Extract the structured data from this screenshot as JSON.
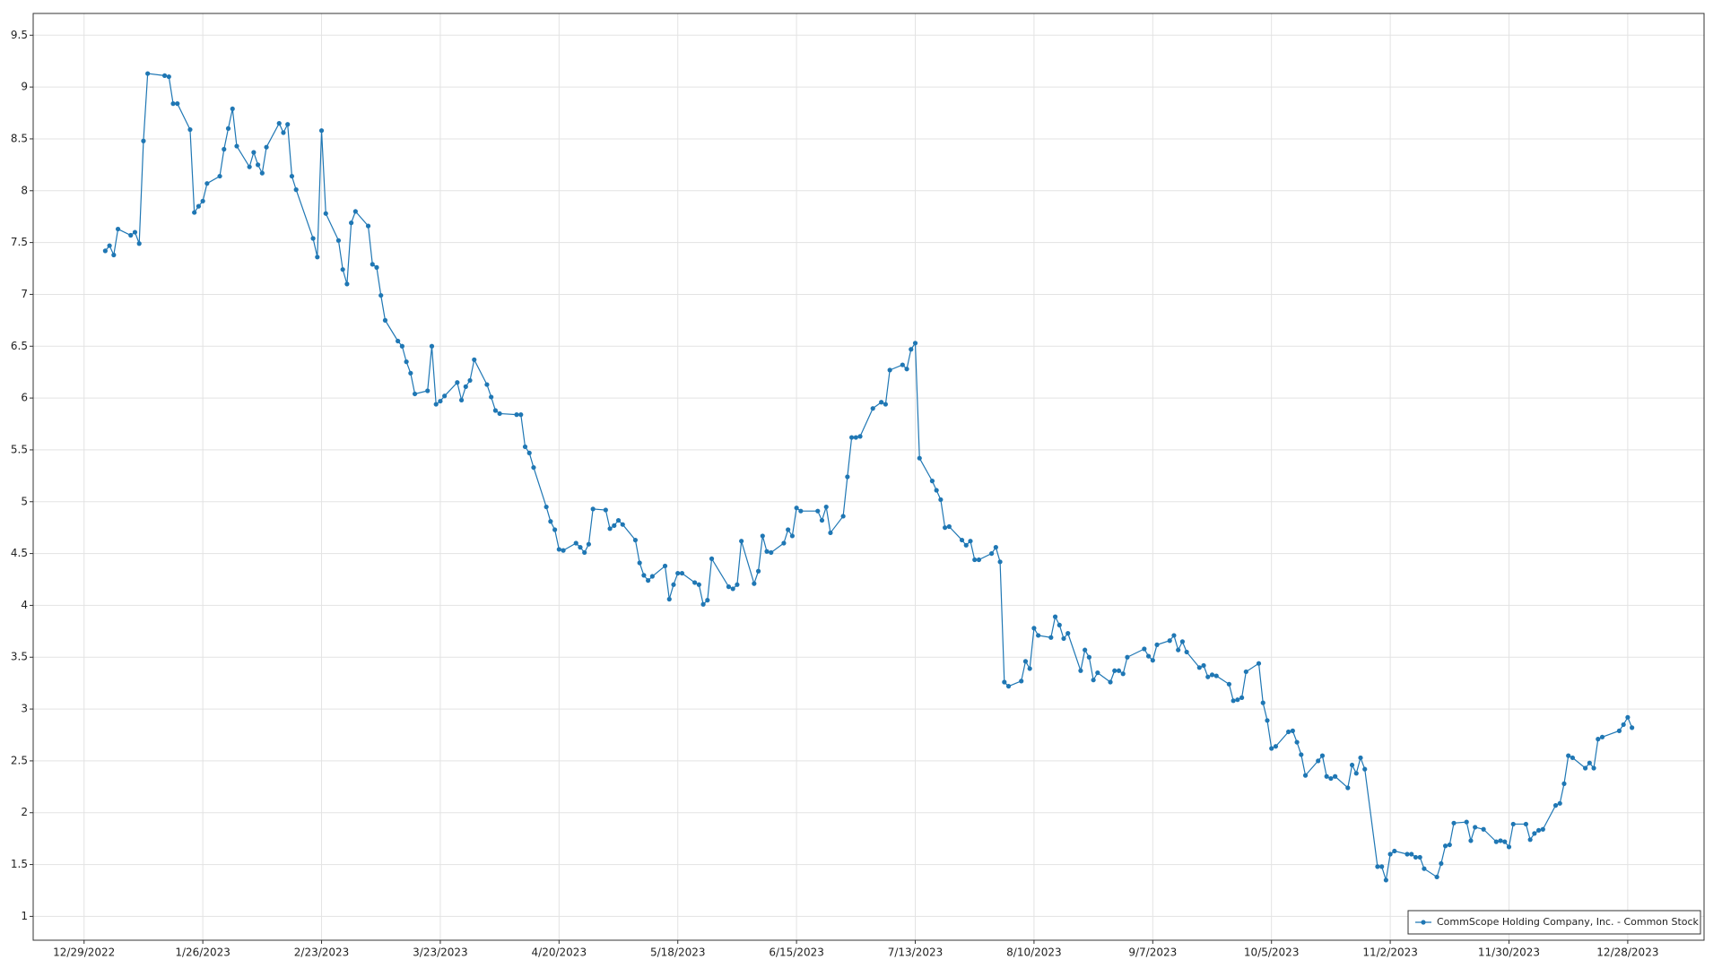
{
  "chart_data": {
    "type": "line",
    "x": [
      "2023-01-03",
      "2023-01-04",
      "2023-01-05",
      "2023-01-06",
      "2023-01-09",
      "2023-01-10",
      "2023-01-11",
      "2023-01-12",
      "2023-01-13",
      "2023-01-17",
      "2023-01-18",
      "2023-01-19",
      "2023-01-20",
      "2023-01-23",
      "2023-01-24",
      "2023-01-25",
      "2023-01-26",
      "2023-01-27",
      "2023-01-30",
      "2023-01-31",
      "2023-02-01",
      "2023-02-02",
      "2023-02-03",
      "2023-02-06",
      "2023-02-07",
      "2023-02-08",
      "2023-02-09",
      "2023-02-10",
      "2023-02-13",
      "2023-02-14",
      "2023-02-15",
      "2023-02-16",
      "2023-02-17",
      "2023-02-21",
      "2023-02-22",
      "2023-02-23",
      "2023-02-24",
      "2023-02-27",
      "2023-02-28",
      "2023-03-01",
      "2023-03-02",
      "2023-03-03",
      "2023-03-06",
      "2023-03-07",
      "2023-03-08",
      "2023-03-09",
      "2023-03-10",
      "2023-03-13",
      "2023-03-14",
      "2023-03-15",
      "2023-03-16",
      "2023-03-17",
      "2023-03-20",
      "2023-03-21",
      "2023-03-22",
      "2023-03-23",
      "2023-03-24",
      "2023-03-27",
      "2023-03-28",
      "2023-03-29",
      "2023-03-30",
      "2023-03-31",
      "2023-04-03",
      "2023-04-04",
      "2023-04-05",
      "2023-04-06",
      "2023-04-10",
      "2023-04-11",
      "2023-04-12",
      "2023-04-13",
      "2023-04-14",
      "2023-04-17",
      "2023-04-18",
      "2023-04-19",
      "2023-04-20",
      "2023-04-21",
      "2023-04-24",
      "2023-04-25",
      "2023-04-26",
      "2023-04-27",
      "2023-04-28",
      "2023-05-01",
      "2023-05-02",
      "2023-05-03",
      "2023-05-04",
      "2023-05-05",
      "2023-05-08",
      "2023-05-09",
      "2023-05-10",
      "2023-05-11",
      "2023-05-12",
      "2023-05-15",
      "2023-05-16",
      "2023-05-17",
      "2023-05-18",
      "2023-05-19",
      "2023-05-22",
      "2023-05-23",
      "2023-05-24",
      "2023-05-25",
      "2023-05-26",
      "2023-05-30",
      "2023-05-31",
      "2023-06-01",
      "2023-06-02",
      "2023-06-05",
      "2023-06-06",
      "2023-06-07",
      "2023-06-08",
      "2023-06-09",
      "2023-06-12",
      "2023-06-13",
      "2023-06-14",
      "2023-06-15",
      "2023-06-16",
      "2023-06-20",
      "2023-06-21",
      "2023-06-22",
      "2023-06-23",
      "2023-06-26",
      "2023-06-27",
      "2023-06-28",
      "2023-06-29",
      "2023-06-30",
      "2023-07-03",
      "2023-07-05",
      "2023-07-06",
      "2023-07-07",
      "2023-07-10",
      "2023-07-11",
      "2023-07-12",
      "2023-07-13",
      "2023-07-14",
      "2023-07-17",
      "2023-07-18",
      "2023-07-19",
      "2023-07-20",
      "2023-07-21",
      "2023-07-24",
      "2023-07-25",
      "2023-07-26",
      "2023-07-27",
      "2023-07-28",
      "2023-07-31",
      "2023-08-01",
      "2023-08-02",
      "2023-08-03",
      "2023-08-04",
      "2023-08-07",
      "2023-08-08",
      "2023-08-09",
      "2023-08-10",
      "2023-08-11",
      "2023-08-14",
      "2023-08-15",
      "2023-08-16",
      "2023-08-17",
      "2023-08-18",
      "2023-08-21",
      "2023-08-22",
      "2023-08-23",
      "2023-08-24",
      "2023-08-25",
      "2023-08-28",
      "2023-08-29",
      "2023-08-30",
      "2023-08-31",
      "2023-09-01",
      "2023-09-05",
      "2023-09-06",
      "2023-09-07",
      "2023-09-08",
      "2023-09-11",
      "2023-09-12",
      "2023-09-13",
      "2023-09-14",
      "2023-09-15",
      "2023-09-18",
      "2023-09-19",
      "2023-09-20",
      "2023-09-21",
      "2023-09-22",
      "2023-09-25",
      "2023-09-26",
      "2023-09-27",
      "2023-09-28",
      "2023-09-29",
      "2023-10-02",
      "2023-10-03",
      "2023-10-04",
      "2023-10-05",
      "2023-10-06",
      "2023-10-09",
      "2023-10-10",
      "2023-10-11",
      "2023-10-12",
      "2023-10-13",
      "2023-10-16",
      "2023-10-17",
      "2023-10-18",
      "2023-10-19",
      "2023-10-20",
      "2023-10-23",
      "2023-10-24",
      "2023-10-25",
      "2023-10-26",
      "2023-10-27",
      "2023-10-30",
      "2023-10-31",
      "2023-11-01",
      "2023-11-02",
      "2023-11-03",
      "2023-11-06",
      "2023-11-07",
      "2023-11-08",
      "2023-11-09",
      "2023-11-10",
      "2023-11-13",
      "2023-11-14",
      "2023-11-15",
      "2023-11-16",
      "2023-11-17",
      "2023-11-20",
      "2023-11-21",
      "2023-11-22",
      "2023-11-24",
      "2023-11-27",
      "2023-11-28",
      "2023-11-29",
      "2023-11-30",
      "2023-12-01",
      "2023-12-04",
      "2023-12-05",
      "2023-12-06",
      "2023-12-07",
      "2023-12-08",
      "2023-12-11",
      "2023-12-12",
      "2023-12-13",
      "2023-12-14",
      "2023-12-15",
      "2023-12-18",
      "2023-12-19",
      "2023-12-20",
      "2023-12-21",
      "2023-12-22",
      "2023-12-26",
      "2023-12-27",
      "2023-12-28",
      "2023-12-29"
    ],
    "series": [
      {
        "name": "CommScope Holding Company, Inc. - Common Stock",
        "color": "#1f77b4",
        "values": [
          7.42,
          7.47,
          7.38,
          7.63,
          7.57,
          7.6,
          7.49,
          8.48,
          9.13,
          9.11,
          9.1,
          8.84,
          8.84,
          8.59,
          7.79,
          7.85,
          7.9,
          8.07,
          8.14,
          8.4,
          8.6,
          8.79,
          8.43,
          8.23,
          8.37,
          8.25,
          8.17,
          8.42,
          8.65,
          8.56,
          8.64,
          8.14,
          8.01,
          7.54,
          7.36,
          8.58,
          7.78,
          7.52,
          7.24,
          7.1,
          7.69,
          7.8,
          7.66,
          7.29,
          7.26,
          6.99,
          6.75,
          6.55,
          6.5,
          6.35,
          6.24,
          6.04,
          6.07,
          6.5,
          5.94,
          5.97,
          6.02,
          6.15,
          5.98,
          6.11,
          6.17,
          6.37,
          6.13,
          6.01,
          5.88,
          5.85,
          5.84,
          5.84,
          5.53,
          5.47,
          5.33,
          4.95,
          4.81,
          4.73,
          4.54,
          4.53,
          4.6,
          4.56,
          4.51,
          4.59,
          4.93,
          4.92,
          4.74,
          4.77,
          4.82,
          4.78,
          4.63,
          4.41,
          4.29,
          4.24,
          4.28,
          4.38,
          4.06,
          4.2,
          4.31,
          4.31,
          4.22,
          4.2,
          4.01,
          4.05,
          4.45,
          4.18,
          4.16,
          4.2,
          4.62,
          4.21,
          4.33,
          4.67,
          4.52,
          4.51,
          4.6,
          4.73,
          4.67,
          4.94,
          4.91,
          4.91,
          4.82,
          4.95,
          4.7,
          4.86,
          5.24,
          5.62,
          5.62,
          5.63,
          5.9,
          5.96,
          5.94,
          6.27,
          6.32,
          6.28,
          6.47,
          6.53,
          5.42,
          5.2,
          5.11,
          5.02,
          4.75,
          4.76,
          4.63,
          4.58,
          4.62,
          4.44,
          4.44,
          4.5,
          4.56,
          4.42,
          3.26,
          3.22,
          3.27,
          3.46,
          3.39,
          3.78,
          3.71,
          3.69,
          3.89,
          3.81,
          3.68,
          3.73,
          3.37,
          3.57,
          3.5,
          3.28,
          3.35,
          3.26,
          3.37,
          3.37,
          3.34,
          3.5,
          3.58,
          3.51,
          3.47,
          3.62,
          3.66,
          3.71,
          3.57,
          3.65,
          3.55,
          3.4,
          3.42,
          3.31,
          3.33,
          3.32,
          3.24,
          3.08,
          3.09,
          3.11,
          3.36,
          3.44,
          3.06,
          2.89,
          2.62,
          2.64,
          2.78,
          2.79,
          2.68,
          2.56,
          2.36,
          2.5,
          2.55,
          2.35,
          2.33,
          2.35,
          2.24,
          2.46,
          2.38,
          2.53,
          2.42,
          1.48,
          1.48,
          1.35,
          1.6,
          1.63,
          1.6,
          1.6,
          1.57,
          1.57,
          1.46,
          1.38,
          1.51,
          1.68,
          1.69,
          1.9,
          1.91,
          1.73,
          1.86,
          1.84,
          1.72,
          1.73,
          1.72,
          1.67,
          1.89,
          1.89,
          1.74,
          1.8,
          1.83,
          1.84,
          2.07,
          2.09,
          2.28,
          2.55,
          2.53,
          2.43,
          2.48,
          2.43,
          2.71,
          2.73,
          2.79,
          2.85,
          2.92,
          2.82
        ]
      }
    ],
    "xlim": [
      "2022-12-17",
      "2024-01-15"
    ],
    "xticks": [
      {
        "value": "2022-12-29",
        "label": "12/29/2022"
      },
      {
        "value": "2023-01-26",
        "label": "1/26/2023"
      },
      {
        "value": "2023-02-23",
        "label": "2/23/2023"
      },
      {
        "value": "2023-03-23",
        "label": "3/23/2023"
      },
      {
        "value": "2023-04-20",
        "label": "4/20/2023"
      },
      {
        "value": "2023-05-18",
        "label": "5/18/2023"
      },
      {
        "value": "2023-06-15",
        "label": "6/15/2023"
      },
      {
        "value": "2023-07-13",
        "label": "7/13/2023"
      },
      {
        "value": "2023-08-10",
        "label": "8/10/2023"
      },
      {
        "value": "2023-09-07",
        "label": "9/7/2023"
      },
      {
        "value": "2023-10-05",
        "label": "10/5/2023"
      },
      {
        "value": "2023-11-02",
        "label": "11/2/2023"
      },
      {
        "value": "2023-11-30",
        "label": "11/30/2023"
      },
      {
        "value": "2023-12-28",
        "label": "12/28/2023"
      }
    ],
    "ylim": [
      0.77,
      9.71
    ],
    "yticks": [
      1,
      1.5,
      2,
      2.5,
      3,
      3.5,
      4,
      4.5,
      5,
      5.5,
      6,
      6.5,
      7,
      7.5,
      8,
      8.5,
      9,
      9.5
    ],
    "grid": true,
    "legend": "lower right"
  }
}
